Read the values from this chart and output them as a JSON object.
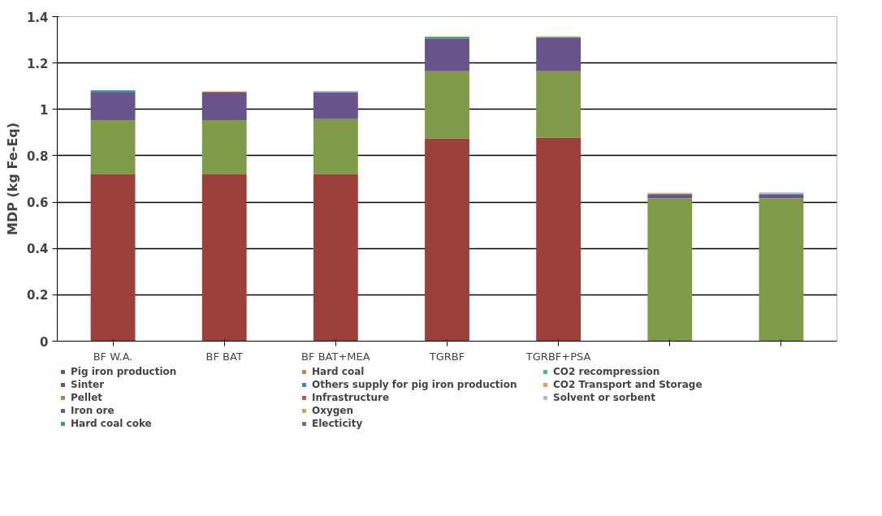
{
  "chart_data": {
    "type": "bar",
    "stacked": true,
    "ylabel": "MDP (kg Fe-Eq)",
    "categories": [
      "BF W.A.",
      "BF BAT",
      "BF BAT+MEA",
      "TGRBF",
      "TGRBF+PSA",
      null,
      null
    ],
    "ylim": [
      0,
      1.4
    ],
    "yticks": [
      0,
      0.2,
      0.4,
      0.6,
      0.8,
      1,
      1.2,
      1.4
    ],
    "grid": "y",
    "legend": "bottom",
    "series": [
      {
        "name": "Pig iron production",
        "color": "#3c6496",
        "values": [
          0,
          0,
          0,
          0,
          0,
          0,
          0
        ]
      },
      {
        "name": "Sinter",
        "color": "#9c403c",
        "values": [
          0.719,
          0.719,
          0.719,
          0.875,
          0.878,
          0,
          0
        ]
      },
      {
        "name": "Pellet",
        "color": "#7f9a48",
        "values": [
          0.235,
          0.235,
          0.239,
          0.29,
          0.287,
          0.617,
          0.617
        ]
      },
      {
        "name": "Iron ore",
        "color": "#68548b",
        "values": [
          0.119,
          0.119,
          0.115,
          0.14,
          0.145,
          0.017,
          0.017
        ]
      },
      {
        "name": "Hard coal coke",
        "color": "#3a90a6",
        "values": [
          0.009,
          0,
          0,
          0.006,
          0.002,
          0,
          0
        ]
      },
      {
        "name": "Hard coal",
        "color": "#d5803a",
        "values": [
          0,
          0.004,
          0,
          0,
          0,
          0.003,
          0
        ]
      },
      {
        "name": "Others supply for pig iron production",
        "color": "#4a7ebb",
        "values": [
          0,
          0,
          0,
          0,
          0,
          0,
          0
        ]
      },
      {
        "name": "Infrastructure",
        "color": "#c0504d",
        "values": [
          0,
          0,
          0,
          0,
          0,
          0,
          0
        ]
      },
      {
        "name": "Oxygen",
        "color": "#9bbb59",
        "values": [
          0,
          0,
          0,
          0.003,
          0.003,
          0.003,
          0
        ]
      },
      {
        "name": "Electicity",
        "color": "#8064a2",
        "values": [
          0,
          0,
          0,
          0,
          0,
          0,
          0
        ]
      },
      {
        "name": "CO2 recompression",
        "color": "#4bacc6",
        "values": [
          0,
          0,
          0,
          0,
          0,
          0,
          0
        ]
      },
      {
        "name": "CO2 Transport and Storage",
        "color": "#f79646",
        "values": [
          0,
          0,
          0,
          0,
          0,
          0,
          0
        ]
      },
      {
        "name": "Solvent or sorbent",
        "color": "#a7b9da",
        "values": [
          0,
          0,
          0.007,
          0,
          0,
          0,
          0.007
        ]
      }
    ]
  }
}
